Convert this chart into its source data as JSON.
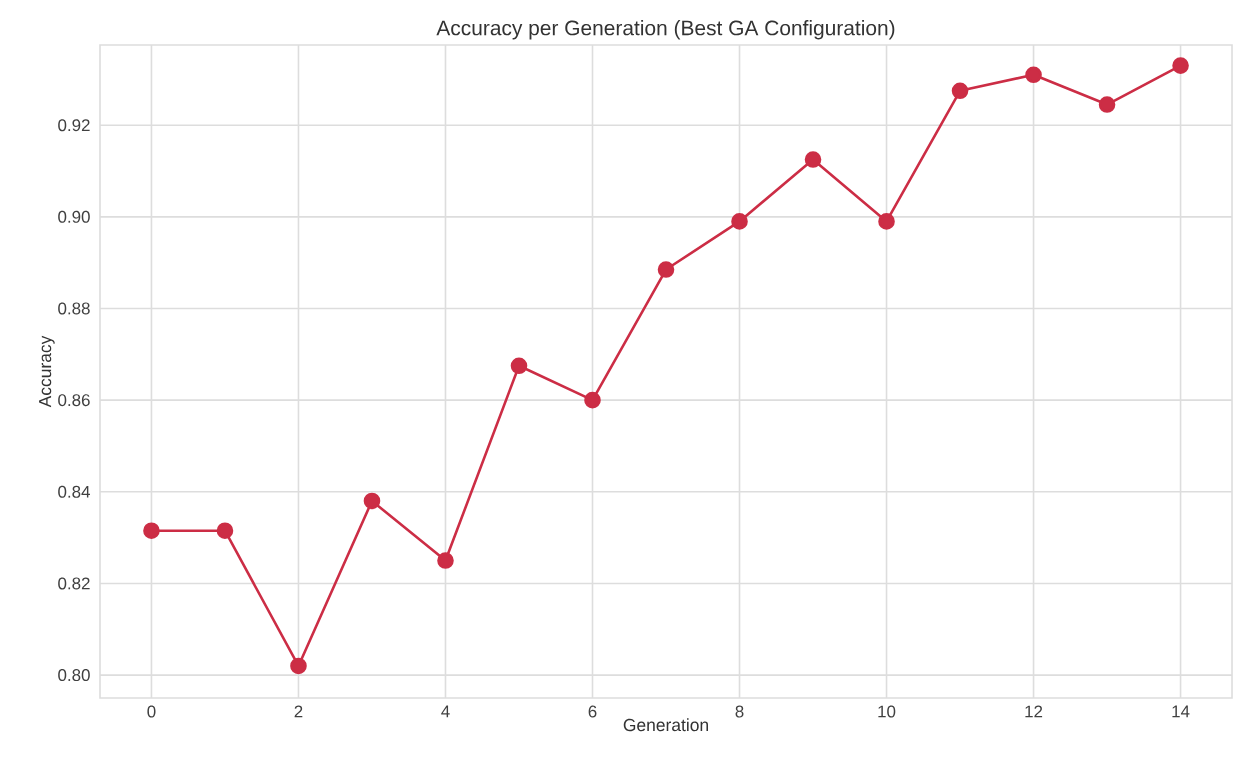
{
  "chart_data": {
    "type": "line",
    "title": "Accuracy per Generation (Best GA Configuration)",
    "xlabel": "Generation",
    "ylabel": "Accuracy",
    "x": [
      0,
      1,
      2,
      3,
      4,
      5,
      6,
      7,
      8,
      9,
      10,
      11,
      12,
      13,
      14
    ],
    "series": [
      {
        "color": "#cc2d45",
        "values": [
          0.8315,
          0.8315,
          0.802,
          0.838,
          0.825,
          0.8675,
          0.86,
          0.8885,
          0.899,
          0.9125,
          0.899,
          0.9275,
          0.931,
          0.9245,
          0.933
        ]
      }
    ],
    "xlim": [
      -0.7,
      14.7
    ],
    "ylim": [
      0.795,
      0.9375
    ],
    "xticks": [
      0,
      2,
      4,
      6,
      8,
      10,
      12,
      14
    ],
    "yticks": [
      {
        "value": 0.8,
        "label": "0.80"
      },
      {
        "value": 0.82,
        "label": "0.82"
      },
      {
        "value": 0.84,
        "label": "0.84"
      },
      {
        "value": 0.86,
        "label": "0.86"
      },
      {
        "value": 0.88,
        "label": "0.88"
      },
      {
        "value": 0.9,
        "label": "0.90"
      },
      {
        "value": 0.92,
        "label": "0.92"
      }
    ],
    "grid": true,
    "marker": "circle",
    "line_style": "solid"
  }
}
